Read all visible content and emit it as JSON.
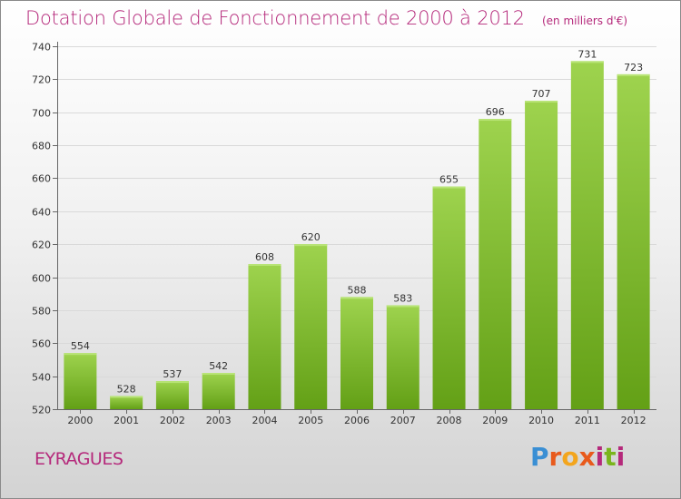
{
  "header": {
    "title": "Dotation Globale de Fonctionnement de 2000 à 2012",
    "unit": "(en milliers d'€)"
  },
  "footer": {
    "commune": "EYRAGUES",
    "logo_text": "Proxiti"
  },
  "colors": {
    "title": "#b5297b",
    "bar_top": "#9ed34e",
    "bar_bottom": "#63a016"
  },
  "chart_data": {
    "type": "bar",
    "title": "Dotation Globale de Fonctionnement de 2000 à 2012",
    "subtitle": "(en milliers d'€)",
    "categories": [
      "2000",
      "2001",
      "2002",
      "2003",
      "2004",
      "2005",
      "2006",
      "2007",
      "2008",
      "2009",
      "2010",
      "2011",
      "2012"
    ],
    "values": [
      554,
      528,
      537,
      542,
      608,
      620,
      588,
      583,
      655,
      696,
      707,
      731,
      723
    ],
    "ylim": [
      520,
      740
    ],
    "yticks": [
      520,
      540,
      560,
      580,
      600,
      620,
      640,
      660,
      680,
      700,
      720,
      740
    ],
    "grid": true,
    "legend": "none",
    "data_labels": true
  }
}
